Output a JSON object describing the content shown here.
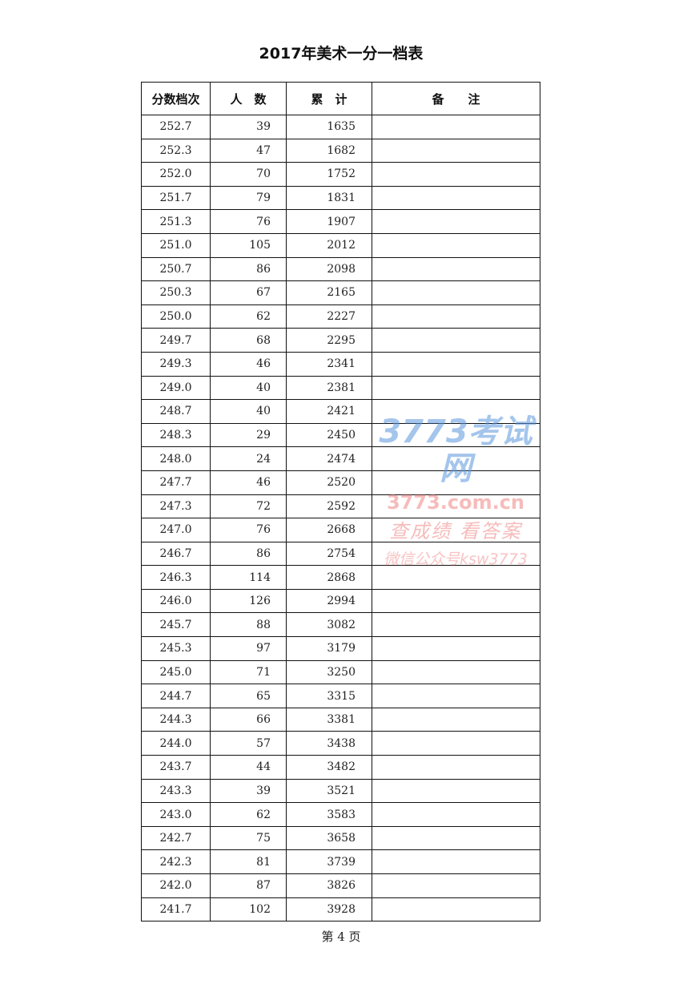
{
  "title": "2017年美术一分一档表",
  "table": {
    "headers": [
      "分数档次",
      "人　数",
      "累　计",
      "备　　注"
    ],
    "rows": [
      [
        "252.7",
        "39",
        "1635",
        ""
      ],
      [
        "252.3",
        "47",
        "1682",
        ""
      ],
      [
        "252.0",
        "70",
        "1752",
        ""
      ],
      [
        "251.7",
        "79",
        "1831",
        ""
      ],
      [
        "251.3",
        "76",
        "1907",
        ""
      ],
      [
        "251.0",
        "105",
        "2012",
        ""
      ],
      [
        "250.7",
        "86",
        "2098",
        ""
      ],
      [
        "250.3",
        "67",
        "2165",
        ""
      ],
      [
        "250.0",
        "62",
        "2227",
        ""
      ],
      [
        "249.7",
        "68",
        "2295",
        ""
      ],
      [
        "249.3",
        "46",
        "2341",
        ""
      ],
      [
        "249.0",
        "40",
        "2381",
        ""
      ],
      [
        "248.7",
        "40",
        "2421",
        ""
      ],
      [
        "248.3",
        "29",
        "2450",
        ""
      ],
      [
        "248.0",
        "24",
        "2474",
        ""
      ],
      [
        "247.7",
        "46",
        "2520",
        ""
      ],
      [
        "247.3",
        "72",
        "2592",
        ""
      ],
      [
        "247.0",
        "76",
        "2668",
        ""
      ],
      [
        "246.7",
        "86",
        "2754",
        ""
      ],
      [
        "246.3",
        "114",
        "2868",
        ""
      ],
      [
        "246.0",
        "126",
        "2994",
        ""
      ],
      [
        "245.7",
        "88",
        "3082",
        ""
      ],
      [
        "245.3",
        "97",
        "3179",
        ""
      ],
      [
        "245.0",
        "71",
        "3250",
        ""
      ],
      [
        "244.7",
        "65",
        "3315",
        ""
      ],
      [
        "244.3",
        "66",
        "3381",
        ""
      ],
      [
        "244.0",
        "57",
        "3438",
        ""
      ],
      [
        "243.7",
        "44",
        "3482",
        ""
      ],
      [
        "243.3",
        "39",
        "3521",
        ""
      ],
      [
        "243.0",
        "62",
        "3583",
        ""
      ],
      [
        "242.7",
        "75",
        "3658",
        ""
      ],
      [
        "242.3",
        "81",
        "3739",
        ""
      ],
      [
        "242.0",
        "87",
        "3826",
        ""
      ],
      [
        "241.7",
        "102",
        "3928",
        ""
      ]
    ]
  },
  "footer": "第 4 页",
  "watermark": {
    "logo": "3773考试网",
    "domain": "3773.com.cn",
    "slogan": "查成绩 看答案",
    "wechat": "微信公众号ksw3773"
  }
}
